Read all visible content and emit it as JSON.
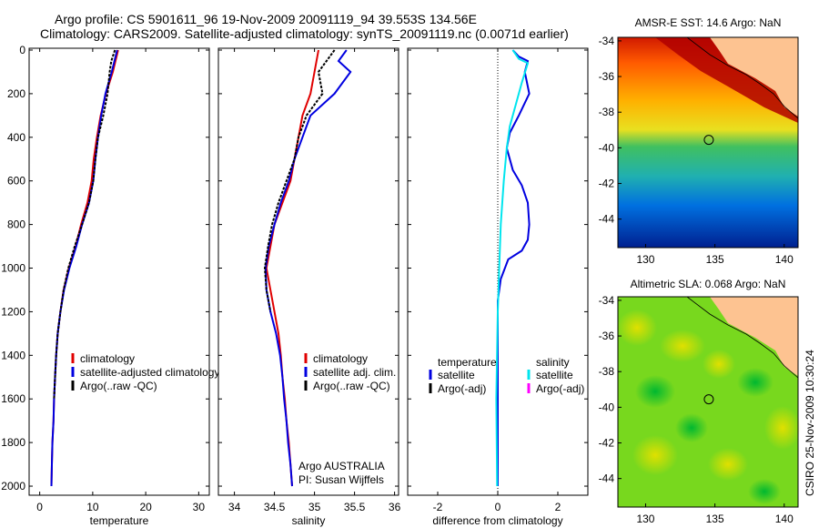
{
  "header": {
    "line1": "Argo profile: CS 5901611_96 19-Nov-2009 20091119_94 39.553S 134.56E",
    "line2": "Climatology: CARS2009. Satellite-adjusted climatology: synTS_20091119.nc (0.0071d earlier)"
  },
  "side_label": "CSIRO 25-Nov-2009 10:30:24",
  "colors": {
    "red": "#e00000",
    "blue": "#0000e0",
    "black": "#000000",
    "cyan": "#00e5ee",
    "magenta": "#ff00ff",
    "land": "#fdc391"
  },
  "chart_data": [
    {
      "type": "line",
      "xlabel": "temperature",
      "ylabel": "",
      "xlim": [
        -2,
        32
      ],
      "ylim": [
        2000,
        0
      ],
      "y_reversed": true,
      "xticks": [
        0,
        10,
        20,
        30
      ],
      "yticks": [
        0,
        200,
        400,
        600,
        800,
        1000,
        1200,
        1400,
        1600,
        1800,
        2000
      ],
      "legend": {
        "placement": "bottom-right",
        "entries": [
          "climatology",
          "satellite-adjusted climatology",
          "Argo(..raw -QC)"
        ]
      },
      "series": [
        {
          "name": "climatology",
          "color": "red",
          "points": [
            [
              14.8,
              0
            ],
            [
              13.8,
              100
            ],
            [
              12.5,
              200
            ],
            [
              11.5,
              300
            ],
            [
              10.8,
              400
            ],
            [
              10.2,
              500
            ],
            [
              9.8,
              600
            ],
            [
              9.0,
              700
            ],
            [
              7.8,
              800
            ],
            [
              6.8,
              900
            ],
            [
              5.5,
              1000
            ],
            [
              4.5,
              1100
            ],
            [
              3.9,
              1200
            ],
            [
              3.4,
              1300
            ],
            [
              3.1,
              1400
            ],
            [
              2.9,
              1500
            ],
            [
              2.7,
              1600
            ],
            [
              2.6,
              1700
            ],
            [
              2.4,
              1800
            ],
            [
              2.3,
              1900
            ],
            [
              2.2,
              2000
            ]
          ]
        },
        {
          "name": "satellite-adjusted climatology",
          "color": "blue",
          "points": [
            [
              14.6,
              0
            ],
            [
              13.6,
              100
            ],
            [
              12.4,
              200
            ],
            [
              11.6,
              300
            ],
            [
              11.0,
              400
            ],
            [
              10.5,
              500
            ],
            [
              10.1,
              600
            ],
            [
              9.3,
              700
            ],
            [
              8.0,
              800
            ],
            [
              6.9,
              900
            ],
            [
              5.6,
              1000
            ],
            [
              4.6,
              1100
            ],
            [
              3.9,
              1200
            ],
            [
              3.4,
              1300
            ],
            [
              3.1,
              1400
            ],
            [
              2.9,
              1500
            ],
            [
              2.7,
              1600
            ],
            [
              2.6,
              1700
            ],
            [
              2.4,
              1800
            ],
            [
              2.3,
              1900
            ],
            [
              2.2,
              2000
            ]
          ]
        },
        {
          "name": "Argo(..raw -QC)",
          "color": "black",
          "dashed": true,
          "points": [
            [
              14.2,
              0
            ],
            [
              13.5,
              50
            ],
            [
              13.2,
              100
            ],
            [
              12.8,
              200
            ],
            [
              12.0,
              300
            ],
            [
              11.0,
              400
            ],
            [
              10.5,
              500
            ],
            [
              10.1,
              600
            ],
            [
              9.3,
              700
            ],
            [
              8.0,
              800
            ],
            [
              6.6,
              900
            ],
            [
              5.4,
              1000
            ],
            [
              4.5,
              1100
            ],
            [
              3.9,
              1200
            ],
            [
              3.4,
              1300
            ],
            [
              3.1,
              1400
            ],
            [
              2.9,
              1500
            ],
            [
              2.7,
              1600
            ]
          ]
        }
      ]
    },
    {
      "type": "line",
      "xlabel": "salinity",
      "ylabel": "",
      "xlim": [
        33.8,
        36.05
      ],
      "ylim": [
        2000,
        0
      ],
      "y_reversed": true,
      "xticks": [
        34,
        34.5,
        35,
        35.5,
        36
      ],
      "xticklabels": [
        "34",
        "34.5",
        "35",
        "35.5",
        "36"
      ],
      "legend": {
        "placement": "bottom-right",
        "entries": [
          "climatology",
          "satellite adj. clim.",
          "Argo(..raw -QC)"
        ]
      },
      "annotations": [
        "Argo AUSTRALIA",
        "PI: Susan Wijffels"
      ],
      "series": [
        {
          "name": "climatology",
          "color": "red",
          "points": [
            [
              35.05,
              0
            ],
            [
              35.0,
              100
            ],
            [
              34.95,
              200
            ],
            [
              34.85,
              300
            ],
            [
              34.8,
              400
            ],
            [
              34.75,
              500
            ],
            [
              34.7,
              600
            ],
            [
              34.6,
              700
            ],
            [
              34.5,
              800
            ],
            [
              34.45,
              900
            ],
            [
              34.4,
              1000
            ],
            [
              34.45,
              1100
            ],
            [
              34.5,
              1200
            ],
            [
              34.55,
              1300
            ],
            [
              34.58,
              1400
            ],
            [
              34.6,
              1500
            ],
            [
              34.63,
              1600
            ],
            [
              34.65,
              1700
            ],
            [
              34.68,
              1800
            ],
            [
              34.7,
              1900
            ],
            [
              34.72,
              2000
            ]
          ]
        },
        {
          "name": "satellite adj. clim.",
          "color": "blue",
          "points": [
            [
              35.4,
              0
            ],
            [
              35.3,
              50
            ],
            [
              35.45,
              100
            ],
            [
              35.25,
              200
            ],
            [
              34.95,
              300
            ],
            [
              34.85,
              400
            ],
            [
              34.75,
              500
            ],
            [
              34.68,
              600
            ],
            [
              34.58,
              700
            ],
            [
              34.5,
              800
            ],
            [
              34.43,
              900
            ],
            [
              34.39,
              1000
            ],
            [
              34.4,
              1100
            ],
            [
              34.45,
              1200
            ],
            [
              34.52,
              1300
            ],
            [
              34.57,
              1400
            ],
            [
              34.6,
              1500
            ],
            [
              34.62,
              1600
            ],
            [
              34.65,
              1700
            ],
            [
              34.67,
              1800
            ],
            [
              34.7,
              1900
            ],
            [
              34.72,
              2000
            ]
          ]
        },
        {
          "name": "Argo(..raw -QC)",
          "color": "black",
          "dashed": true,
          "points": [
            [
              35.25,
              0
            ],
            [
              35.15,
              50
            ],
            [
              35.05,
              100
            ],
            [
              35.1,
              200
            ],
            [
              34.9,
              300
            ],
            [
              34.8,
              400
            ],
            [
              34.75,
              500
            ],
            [
              34.65,
              600
            ],
            [
              34.55,
              700
            ],
            [
              34.47,
              800
            ],
            [
              34.42,
              900
            ],
            [
              34.38,
              1000
            ],
            [
              34.4,
              1100
            ],
            [
              34.45,
              1200
            ]
          ]
        }
      ]
    },
    {
      "type": "line",
      "xlabel": "difference from climatology",
      "ylabel": "",
      "xlim": [
        -3.0,
        3.0
      ],
      "ylim": [
        2000,
        0
      ],
      "y_reversed": true,
      "xticks": [
        -2,
        0,
        2
      ],
      "legend": {
        "placement": "bottom",
        "groups": [
          {
            "title": "temperature",
            "entries": [
              "satellite",
              "Argo(-adj)"
            ]
          },
          {
            "title": "salinity",
            "entries": [
              "satellite",
              "Argo(-adj)"
            ]
          }
        ]
      },
      "series": [
        {
          "name": "temperature satellite",
          "color": "blue",
          "points": [
            [
              0.5,
              0
            ],
            [
              0.7,
              30
            ],
            [
              1.0,
              50
            ],
            [
              0.9,
              100
            ],
            [
              1.05,
              200
            ],
            [
              0.7,
              300
            ],
            [
              0.4,
              380
            ],
            [
              0.3,
              450
            ],
            [
              0.5,
              550
            ],
            [
              0.8,
              620
            ],
            [
              1.0,
              700
            ],
            [
              1.05,
              800
            ],
            [
              1.0,
              870
            ],
            [
              0.8,
              920
            ],
            [
              0.35,
              960
            ],
            [
              0.1,
              1050
            ],
            [
              0.0,
              1150
            ],
            [
              0.0,
              2000
            ]
          ]
        },
        {
          "name": "salinity satellite",
          "color": "cyan",
          "points": [
            [
              0.5,
              0
            ],
            [
              0.7,
              40
            ],
            [
              1.0,
              60
            ],
            [
              0.8,
              150
            ],
            [
              0.6,
              250
            ],
            [
              0.4,
              350
            ],
            [
              0.3,
              450
            ],
            [
              0.2,
              600
            ],
            [
              0.1,
              800
            ],
            [
              0.05,
              1000
            ],
            [
              0.0,
              1200
            ],
            [
              -0.05,
              1600
            ],
            [
              -0.02,
              2000
            ]
          ]
        }
      ]
    },
    {
      "type": "heatmap",
      "title": "AMSR-E SST: 14.6 Argo: NaN",
      "xlim": [
        128,
        141
      ],
      "ylim": [
        -45.6,
        -33.8
      ],
      "xticks": [
        130,
        135,
        140
      ],
      "yticks": [
        -34,
        -36,
        -38,
        -40,
        -42,
        -44
      ],
      "marker": {
        "x": 134.56,
        "y": -39.553
      }
    },
    {
      "type": "heatmap",
      "title": "Altimetric SLA: 0.068 Argo: NaN",
      "xlim": [
        128,
        141
      ],
      "ylim": [
        -45.6,
        -33.8
      ],
      "xticks": [
        130,
        135,
        140
      ],
      "yticks": [
        -34,
        -36,
        -38,
        -40,
        -42,
        -44
      ],
      "marker": {
        "x": 134.56,
        "y": -39.553
      }
    }
  ]
}
